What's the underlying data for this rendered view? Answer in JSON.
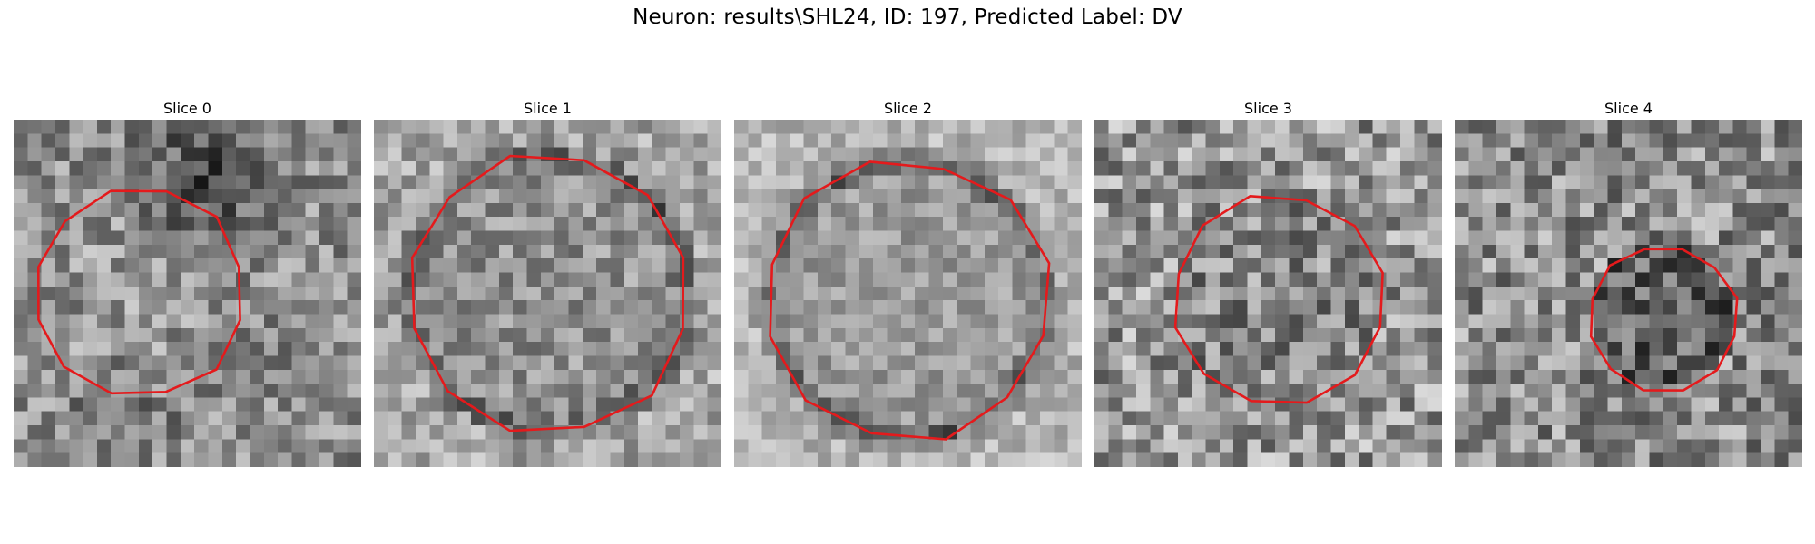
{
  "figure": {
    "title": "Neuron: results\\SHL24, ID: 197, Predicted Label: DV"
  },
  "contour_color": "#e41a1c",
  "panels": [
    {
      "title": "Slice 0"
    },
    {
      "title": "Slice 1"
    },
    {
      "title": "Slice 2"
    },
    {
      "title": "Slice 3"
    },
    {
      "title": "Slice 4"
    }
  ]
}
